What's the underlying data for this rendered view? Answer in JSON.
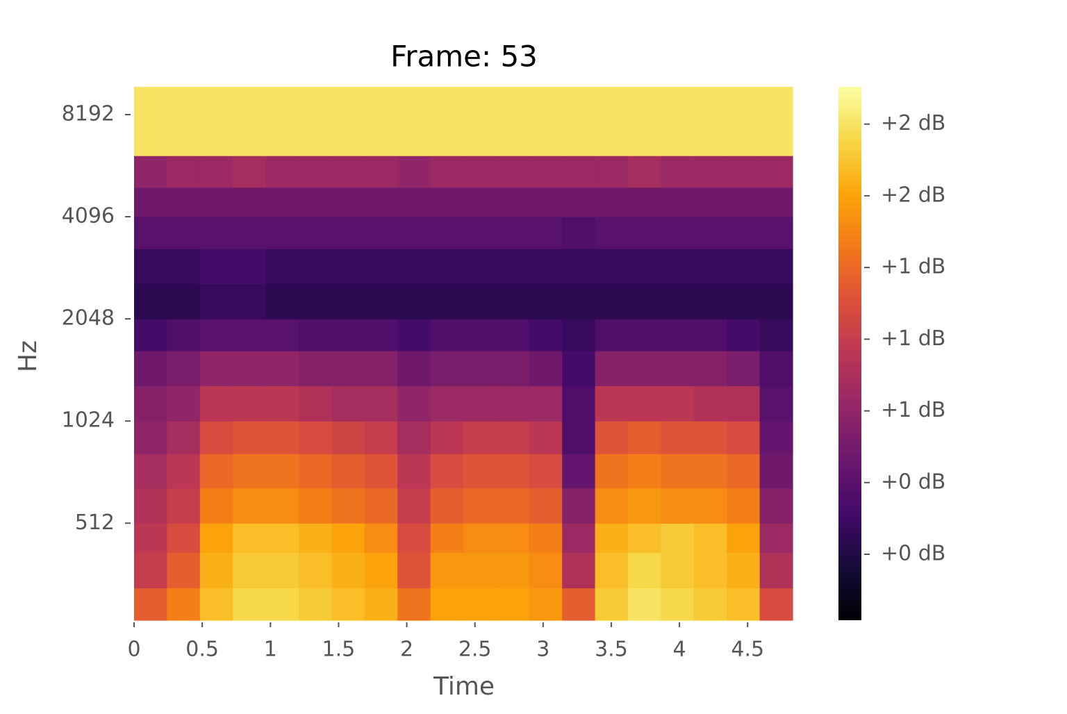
{
  "chart_data": {
    "type": "heatmap",
    "title": "Frame: 53",
    "x_label": "Time",
    "y_label": "Hz",
    "xlim": [
      0,
      4.83
    ],
    "xticks": [
      0,
      0.5,
      1,
      1.5,
      2,
      2.5,
      3,
      3.5,
      4,
      4.5
    ],
    "ylim": [
      265,
      9890
    ],
    "y_log_base": 2,
    "yticks": [
      512,
      1024,
      2048,
      4096,
      8192
    ],
    "y_edges": [
      265,
      330,
      420,
      512,
      650,
      820,
      1024,
      1300,
      1650,
      2048,
      2600,
      3300,
      4096,
      5000,
      6200,
      9890
    ],
    "colormap": "inferno",
    "clim": [
      0.02,
      1.88
    ],
    "cticks": [
      {
        "value": 0.25,
        "label": "+0 dB"
      },
      {
        "value": 0.5,
        "label": "+0 dB"
      },
      {
        "value": 0.75,
        "label": "+1 dB"
      },
      {
        "value": 1.0,
        "label": "+1 dB"
      },
      {
        "value": 1.25,
        "label": "+1 dB"
      },
      {
        "value": 1.5,
        "label": "+2 dB"
      },
      {
        "value": 1.75,
        "label": "+2 dB"
      }
    ],
    "z": [
      [
        1.2,
        1.35,
        1.6,
        1.7,
        1.7,
        1.65,
        1.6,
        1.55,
        1.3,
        1.5,
        1.5,
        1.5,
        1.45,
        1.2,
        1.65,
        1.75,
        1.7,
        1.65,
        1.6,
        1.1
      ],
      [
        1.0,
        1.2,
        1.55,
        1.65,
        1.65,
        1.6,
        1.55,
        1.5,
        1.15,
        1.45,
        1.45,
        1.45,
        1.4,
        0.9,
        1.6,
        1.7,
        1.65,
        1.6,
        1.55,
        0.9
      ],
      [
        0.95,
        1.1,
        1.5,
        1.6,
        1.6,
        1.55,
        1.5,
        1.4,
        1.1,
        1.35,
        1.4,
        1.4,
        1.35,
        0.8,
        1.55,
        1.6,
        1.65,
        1.6,
        1.5,
        0.8
      ],
      [
        0.9,
        1.0,
        1.35,
        1.4,
        1.4,
        1.35,
        1.3,
        1.25,
        1.0,
        1.2,
        1.25,
        1.25,
        1.2,
        0.7,
        1.4,
        1.45,
        1.4,
        1.4,
        1.35,
        0.7
      ],
      [
        0.85,
        0.95,
        1.25,
        1.3,
        1.3,
        1.25,
        1.2,
        1.15,
        0.95,
        1.1,
        1.15,
        1.15,
        1.1,
        0.55,
        1.3,
        1.35,
        1.3,
        1.3,
        1.25,
        0.6
      ],
      [
        0.75,
        0.85,
        1.1,
        1.15,
        1.15,
        1.1,
        1.05,
        1.0,
        0.85,
        0.95,
        1.0,
        1.0,
        0.95,
        0.45,
        1.15,
        1.2,
        1.15,
        1.15,
        1.1,
        0.55
      ],
      [
        0.7,
        0.75,
        0.95,
        0.95,
        0.95,
        0.9,
        0.85,
        0.85,
        0.75,
        0.8,
        0.8,
        0.8,
        0.8,
        0.45,
        0.95,
        0.95,
        0.95,
        0.9,
        0.9,
        0.5
      ],
      [
        0.6,
        0.65,
        0.75,
        0.75,
        0.75,
        0.7,
        0.7,
        0.7,
        0.6,
        0.65,
        0.65,
        0.65,
        0.6,
        0.4,
        0.7,
        0.7,
        0.7,
        0.7,
        0.65,
        0.45
      ],
      [
        0.4,
        0.45,
        0.5,
        0.5,
        0.5,
        0.45,
        0.45,
        0.45,
        0.4,
        0.45,
        0.45,
        0.45,
        0.4,
        0.35,
        0.45,
        0.45,
        0.45,
        0.45,
        0.4,
        0.35
      ],
      [
        0.3,
        0.3,
        0.35,
        0.35,
        0.3,
        0.3,
        0.3,
        0.3,
        0.3,
        0.3,
        0.3,
        0.3,
        0.3,
        0.3,
        0.3,
        0.3,
        0.3,
        0.3,
        0.3,
        0.3
      ],
      [
        0.35,
        0.35,
        0.4,
        0.4,
        0.35,
        0.35,
        0.35,
        0.35,
        0.35,
        0.35,
        0.35,
        0.35,
        0.35,
        0.35,
        0.35,
        0.35,
        0.35,
        0.35,
        0.35,
        0.35
      ],
      [
        0.5,
        0.5,
        0.5,
        0.5,
        0.5,
        0.5,
        0.5,
        0.5,
        0.5,
        0.5,
        0.5,
        0.5,
        0.5,
        0.45,
        0.5,
        0.5,
        0.5,
        0.5,
        0.5,
        0.5
      ],
      [
        0.6,
        0.6,
        0.6,
        0.6,
        0.6,
        0.6,
        0.6,
        0.6,
        0.6,
        0.6,
        0.6,
        0.6,
        0.6,
        0.6,
        0.6,
        0.6,
        0.6,
        0.6,
        0.6,
        0.6
      ],
      [
        0.75,
        0.8,
        0.8,
        0.85,
        0.8,
        0.8,
        0.8,
        0.8,
        0.75,
        0.8,
        0.8,
        0.8,
        0.8,
        0.8,
        0.8,
        0.85,
        0.8,
        0.8,
        0.8,
        0.8
      ],
      [
        1.75,
        1.75,
        1.75,
        1.75,
        1.75,
        1.75,
        1.75,
        1.75,
        1.75,
        1.75,
        1.75,
        1.75,
        1.75,
        1.75,
        1.75,
        1.75,
        1.75,
        1.75,
        1.75,
        1.75
      ]
    ]
  }
}
